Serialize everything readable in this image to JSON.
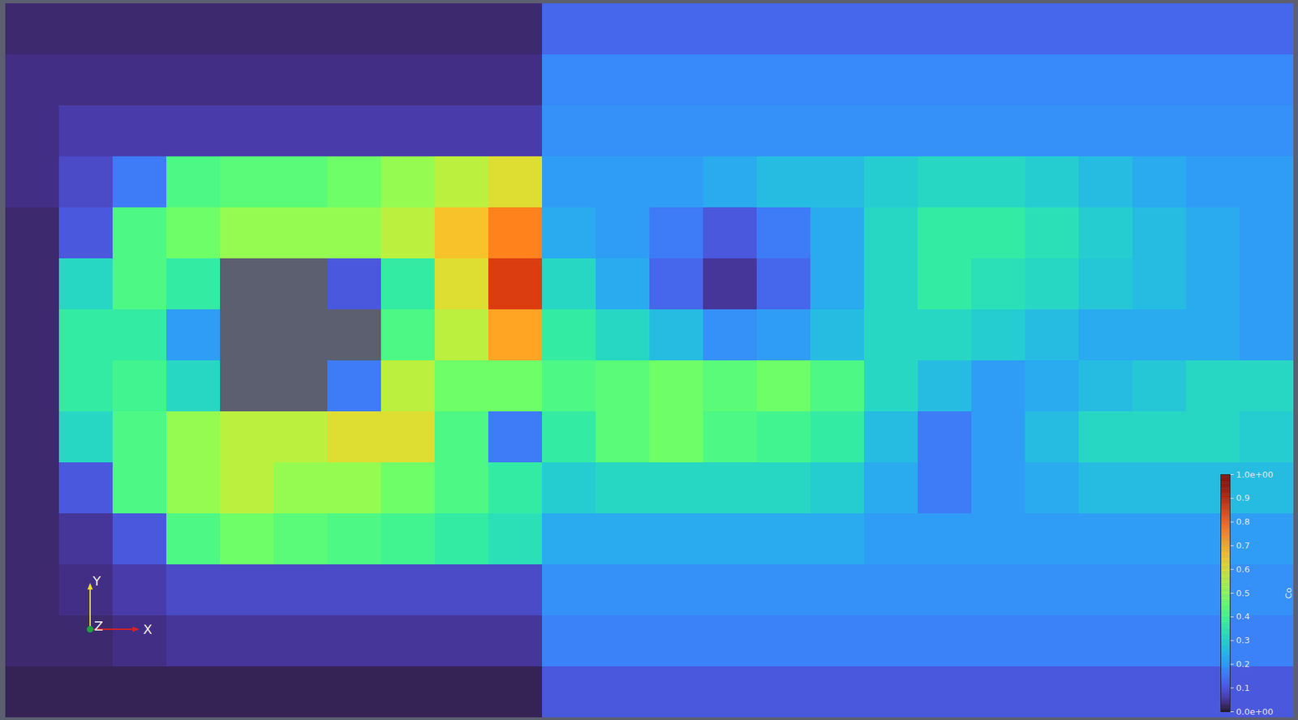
{
  "chart_data": {
    "type": "heatmap",
    "cells": [
      [
        0.03,
        0.03,
        0.03,
        0.03,
        0.03,
        0.03,
        0.03,
        0.03,
        0.03,
        0.03,
        0.12,
        0.12,
        0.12,
        0.12,
        0.12,
        0.12,
        0.12,
        0.12,
        0.12,
        0.12,
        0.12,
        0.12,
        0.12,
        0.12
      ],
      [
        0.04,
        0.04,
        0.04,
        0.04,
        0.04,
        0.04,
        0.04,
        0.04,
        0.04,
        0.04,
        0.17,
        0.17,
        0.17,
        0.17,
        0.17,
        0.17,
        0.17,
        0.17,
        0.17,
        0.17,
        0.17,
        0.17,
        0.17,
        0.17
      ],
      [
        0.04,
        0.06,
        0.06,
        0.06,
        0.06,
        0.06,
        0.06,
        0.06,
        0.06,
        0.06,
        0.18,
        0.18,
        0.18,
        0.18,
        0.18,
        0.18,
        0.18,
        0.18,
        0.18,
        0.18,
        0.18,
        0.18,
        0.18,
        0.18
      ],
      [
        0.04,
        0.08,
        0.15,
        0.4,
        0.42,
        0.42,
        0.45,
        0.5,
        0.55,
        0.6,
        0.2,
        0.2,
        0.2,
        0.22,
        0.25,
        0.25,
        0.28,
        0.3,
        0.3,
        0.28,
        0.25,
        0.22,
        0.2,
        0.2
      ],
      [
        0.03,
        0.1,
        0.4,
        0.45,
        0.5,
        0.5,
        0.5,
        0.55,
        0.65,
        0.75,
        0.22,
        0.2,
        0.15,
        0.1,
        0.15,
        0.22,
        0.3,
        0.35,
        0.35,
        0.32,
        0.28,
        0.25,
        0.22,
        0.2
      ],
      [
        0.03,
        0.3,
        0.4,
        0.35,
        null,
        null,
        0.1,
        0.35,
        0.6,
        0.85,
        0.3,
        0.22,
        0.12,
        0.05,
        0.12,
        0.22,
        0.3,
        0.35,
        0.32,
        0.3,
        0.27,
        0.25,
        0.22,
        0.2
      ],
      [
        0.03,
        0.35,
        0.35,
        0.2,
        null,
        null,
        null,
        0.4,
        0.55,
        0.7,
        0.35,
        0.3,
        0.25,
        0.18,
        0.2,
        0.25,
        0.3,
        0.3,
        0.28,
        0.25,
        0.22,
        0.22,
        0.22,
        0.2
      ],
      [
        0.03,
        0.35,
        0.38,
        0.3,
        null,
        null,
        0.15,
        0.55,
        0.45,
        0.45,
        0.4,
        0.42,
        0.45,
        0.42,
        0.45,
        0.4,
        0.3,
        0.25,
        0.2,
        0.22,
        0.25,
        0.27,
        0.3,
        0.3
      ],
      [
        0.03,
        0.3,
        0.4,
        0.5,
        0.55,
        0.55,
        0.6,
        0.6,
        0.4,
        0.15,
        0.35,
        0.42,
        0.45,
        0.4,
        0.38,
        0.35,
        0.25,
        0.15,
        0.2,
        0.25,
        0.3,
        0.3,
        0.3,
        0.28
      ],
      [
        0.03,
        0.1,
        0.4,
        0.5,
        0.55,
        0.5,
        0.5,
        0.45,
        0.4,
        0.35,
        0.28,
        0.3,
        0.3,
        0.3,
        0.3,
        0.28,
        0.22,
        0.15,
        0.2,
        0.22,
        0.25,
        0.25,
        0.25,
        0.25
      ],
      [
        0.03,
        0.05,
        0.1,
        0.4,
        0.45,
        0.42,
        0.4,
        0.38,
        0.35,
        0.32,
        0.22,
        0.22,
        0.22,
        0.22,
        0.22,
        0.22,
        0.2,
        0.2,
        0.2,
        0.2,
        0.2,
        0.2,
        0.2,
        0.2
      ],
      [
        0.03,
        0.04,
        0.06,
        0.08,
        0.08,
        0.08,
        0.08,
        0.08,
        0.08,
        0.08,
        0.18,
        0.18,
        0.18,
        0.18,
        0.18,
        0.18,
        0.18,
        0.18,
        0.18,
        0.18,
        0.18,
        0.18,
        0.18,
        0.18
      ],
      [
        0.03,
        0.03,
        0.04,
        0.05,
        0.05,
        0.05,
        0.05,
        0.05,
        0.05,
        0.05,
        0.16,
        0.16,
        0.16,
        0.16,
        0.16,
        0.16,
        0.16,
        0.16,
        0.16,
        0.16,
        0.16,
        0.16,
        0.16,
        0.16
      ],
      [
        0.02,
        0.02,
        0.02,
        0.02,
        0.02,
        0.02,
        0.02,
        0.02,
        0.02,
        0.02,
        0.1,
        0.1,
        0.1,
        0.1,
        0.1,
        0.1,
        0.1,
        0.1,
        0.1,
        0.1,
        0.1,
        0.1,
        0.1,
        0.1
      ]
    ],
    "colorbar": {
      "label": "Co",
      "range": [
        0,
        1
      ],
      "ticks": [
        {
          "value": 0,
          "label": "0.0e+00"
        },
        0.1,
        0.2,
        0.3,
        0.4,
        0.5,
        0.6,
        0.7,
        0.8,
        0.9,
        {
          "value": 1,
          "label": "1.0e+00"
        }
      ]
    },
    "tick_labels": false,
    "axes_triad": [
      "X",
      "Y",
      "Z"
    ]
  }
}
